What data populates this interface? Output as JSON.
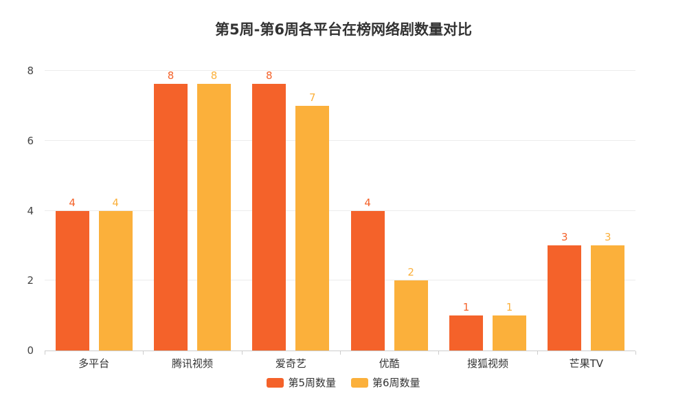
{
  "chart_data": {
    "type": "bar",
    "title": "第5周-第6周各平台在榜网络剧数量对比",
    "categories": [
      "多平台",
      "腾讯视频",
      "爱奇艺",
      "优酷",
      "搜狐视频",
      "芒果TV"
    ],
    "series": [
      {
        "name": "第5周数量",
        "color": "#f4622a",
        "values": [
          4,
          8,
          8,
          4,
          1,
          3
        ]
      },
      {
        "name": "第6周数量",
        "color": "#fbb03b",
        "values": [
          4,
          8,
          7,
          2,
          1,
          3
        ]
      }
    ],
    "ylim": [
      0,
      8
    ],
    "yticks": [
      0,
      2,
      4,
      6,
      8
    ],
    "grid": true,
    "legend_position": "bottom",
    "background_color": "#ffffff",
    "title_color": "#333333"
  }
}
